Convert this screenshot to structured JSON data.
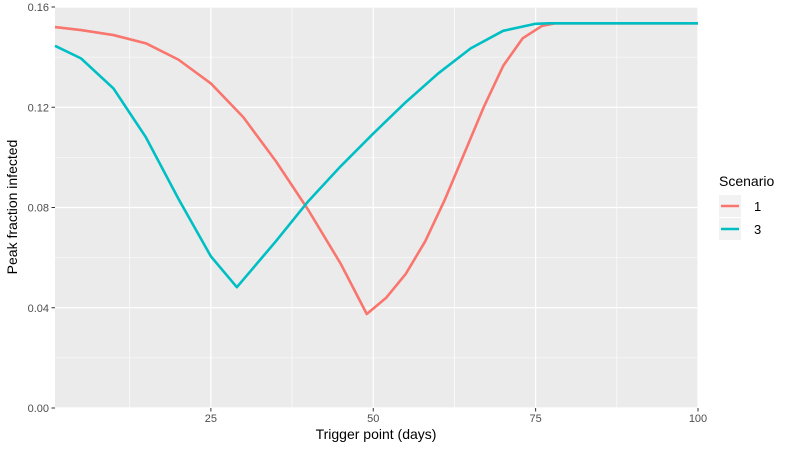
{
  "chart_data": {
    "type": "line",
    "xlabel": "Trigger point (days)",
    "ylabel": "Peak fraction infected",
    "xlim": [
      1,
      100
    ],
    "ylim": [
      0,
      0.16
    ],
    "x_ticks": [
      25,
      50,
      75,
      100
    ],
    "y_ticks": [
      0,
      0.04,
      0.08,
      0.12,
      0.16
    ],
    "y_tick_labels": [
      "0.00",
      "0.04",
      "0.08",
      "0.12",
      "0.16"
    ],
    "grid": true,
    "legend": {
      "title": "Scenario",
      "position": "right"
    },
    "series": [
      {
        "name": "1",
        "color": "#F8766D",
        "x": [
          1,
          5,
          10,
          15,
          20,
          25,
          30,
          35,
          40,
          45,
          49,
          52,
          55,
          58,
          61,
          64,
          67,
          70,
          73,
          76,
          78,
          80,
          85,
          90,
          95,
          100
        ],
        "y": [
          0.152,
          0.1508,
          0.1488,
          0.1455,
          0.139,
          0.1295,
          0.116,
          0.0985,
          0.079,
          0.0575,
          0.0375,
          0.044,
          0.0535,
          0.0665,
          0.083,
          0.1015,
          0.12,
          0.1365,
          0.1475,
          0.1525,
          0.1535,
          0.1535,
          0.1535,
          0.1535,
          0.1535,
          0.1535
        ]
      },
      {
        "name": "3",
        "color": "#00BFC4",
        "x": [
          1,
          5,
          10,
          15,
          20,
          25,
          29,
          35,
          40,
          45,
          50,
          55,
          60,
          65,
          70,
          75,
          77,
          80,
          85,
          90,
          95,
          100
        ],
        "y": [
          0.1445,
          0.1395,
          0.1275,
          0.108,
          0.0835,
          0.0605,
          0.0482,
          0.0665,
          0.0825,
          0.0965,
          0.1095,
          0.122,
          0.1335,
          0.1435,
          0.1505,
          0.1533,
          0.1535,
          0.1535,
          0.1535,
          0.1535,
          0.1535,
          0.1535
        ]
      }
    ]
  }
}
